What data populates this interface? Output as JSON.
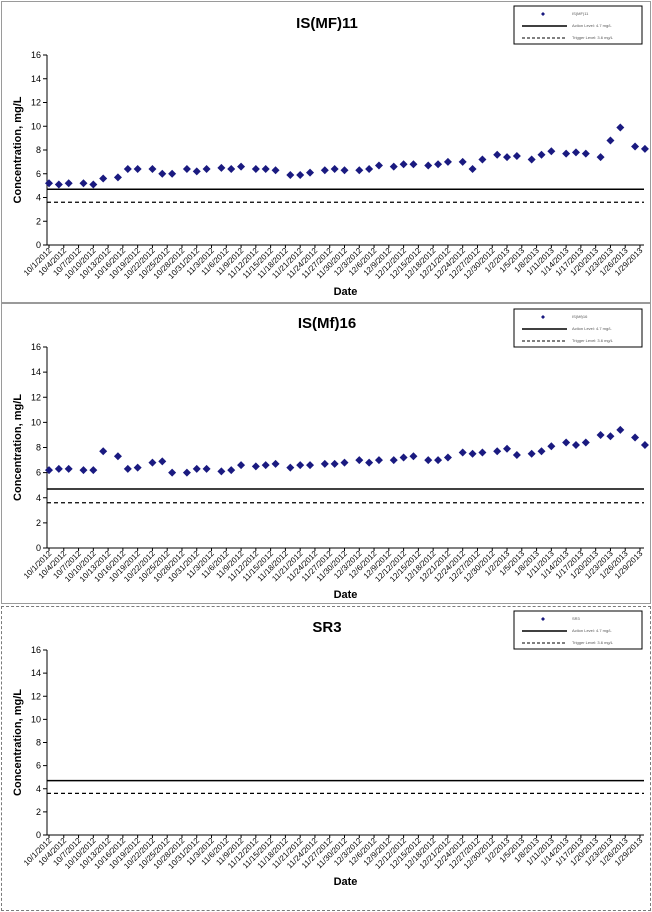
{
  "chart_data": [
    {
      "type": "scatter",
      "title": "IS(MF)11",
      "xlabel": "Date",
      "ylabel": "Concentration, mg/L",
      "ylim": [
        0,
        16
      ],
      "yticks": [
        "0",
        "2",
        "4",
        "6",
        "8",
        "10",
        "12",
        "14",
        "16"
      ],
      "xticks": [
        "10/1/2012",
        "10/4/2012",
        "10/7/2012",
        "10/10/2012",
        "10/13/2012",
        "10/16/2012",
        "10/19/2012",
        "10/22/2012",
        "10/25/2012",
        "10/28/2012",
        "10/31/2012",
        "11/3/2012",
        "11/6/2012",
        "11/9/2012",
        "11/12/2012",
        "11/15/2012",
        "11/18/2012",
        "11/21/2012",
        "11/24/2012",
        "11/27/2012",
        "11/30/2012",
        "12/3/2012",
        "12/6/2012",
        "12/9/2012",
        "12/12/2012",
        "12/15/2012",
        "12/18/2012",
        "12/21/2012",
        "12/24/2012",
        "12/27/2012",
        "12/30/2012",
        "1/2/2013",
        "1/5/2013",
        "1/8/2013",
        "1/11/2013",
        "1/14/2013",
        "1/17/2013",
        "1/20/2013",
        "1/23/2013",
        "1/26/2013",
        "1/29/2013"
      ],
      "grid": false,
      "legend_position": "top-right",
      "legend": [
        "IS(MF)11",
        "Action Level: 4.7 mg/L",
        "Trigger Level: 3.6 mg/L"
      ],
      "series": [
        {
          "name": "IS(MF)11",
          "color": "#1a1a80",
          "x": [
            "10/1/2012",
            "10/3/2012",
            "10/5/2012",
            "10/8/2012",
            "10/10/2012",
            "10/12/2012",
            "10/15/2012",
            "10/17/2012",
            "10/19/2012",
            "10/22/2012",
            "10/24/2012",
            "10/26/2012",
            "10/29/2012",
            "10/31/2012",
            "11/2/2012",
            "11/5/2012",
            "11/7/2012",
            "11/9/2012",
            "11/12/2012",
            "11/14/2012",
            "11/16/2012",
            "11/19/2012",
            "11/21/2012",
            "11/23/2012",
            "11/26/2012",
            "11/28/2012",
            "11/30/2012",
            "12/3/2012",
            "12/5/2012",
            "12/7/2012",
            "12/10/2012",
            "12/12/2012",
            "12/14/2012",
            "12/17/2012",
            "12/19/2012",
            "12/21/2012",
            "12/24/2012",
            "12/26/2012",
            "12/28/2012",
            "12/31/2012",
            "1/2/2013",
            "1/4/2013",
            "1/7/2013",
            "1/9/2013",
            "1/11/2013",
            "1/14/2013",
            "1/16/2013",
            "1/18/2013",
            "1/21/2013",
            "1/23/2013",
            "1/25/2013",
            "1/28/2013",
            "1/30/2013"
          ],
          "y": [
            5.2,
            5.1,
            5.2,
            5.2,
            5.1,
            5.6,
            5.7,
            6.4,
            6.4,
            6.4,
            6.0,
            6.0,
            6.4,
            6.2,
            6.4,
            6.5,
            6.4,
            6.6,
            6.4,
            6.4,
            6.3,
            5.9,
            5.9,
            6.1,
            6.3,
            6.4,
            6.3,
            6.3,
            6.4,
            6.7,
            6.6,
            6.8,
            6.8,
            6.7,
            6.8,
            7.0,
            7.0,
            6.4,
            7.2,
            7.6,
            7.4,
            7.5,
            7.2,
            7.6,
            7.9,
            7.7,
            7.8,
            7.7,
            7.4,
            8.8,
            9.9,
            8.3,
            8.1
          ]
        }
      ],
      "reference_lines": [
        {
          "name": "Action Level: 4.7 mg/L",
          "y": 4.7,
          "style": "solid"
        },
        {
          "name": "Trigger Level: 3.6 mg/L",
          "y": 3.6,
          "style": "dashed"
        }
      ]
    },
    {
      "type": "scatter",
      "title": "IS(Mf)16",
      "xlabel": "Date",
      "ylabel": "Concentration, mg/L",
      "ylim": [
        0,
        16
      ],
      "yticks": [
        "0",
        "2",
        "4",
        "6",
        "8",
        "10",
        "12",
        "14",
        "16"
      ],
      "xticks": [
        "10/1/2012",
        "10/4/2012",
        "10/7/2012",
        "10/10/2012",
        "10/13/2012",
        "10/16/2012",
        "10/19/2012",
        "10/22/2012",
        "10/25/2012",
        "10/28/2012",
        "10/31/2012",
        "11/3/2012",
        "11/6/2012",
        "11/9/2012",
        "11/12/2012",
        "11/15/2012",
        "11/18/2012",
        "11/21/2012",
        "11/24/2012",
        "11/27/2012",
        "11/30/2012",
        "12/3/2012",
        "12/6/2012",
        "12/9/2012",
        "12/12/2012",
        "12/15/2012",
        "12/18/2012",
        "12/21/2012",
        "12/24/2012",
        "12/27/2012",
        "12/30/2012",
        "1/2/2013",
        "1/5/2013",
        "1/8/2013",
        "1/11/2013",
        "1/14/2013",
        "1/17/2013",
        "1/20/2013",
        "1/23/2013",
        "1/26/2013",
        "1/29/2013"
      ],
      "grid": false,
      "legend_position": "top-right",
      "legend": [
        "IS(Mf)16",
        "Action Level: 4.7 mg/L",
        "Trigger Level: 3.6 mg/L"
      ],
      "series": [
        {
          "name": "IS(Mf)16",
          "color": "#1a1a80",
          "x": [
            "10/1/2012",
            "10/3/2012",
            "10/5/2012",
            "10/8/2012",
            "10/10/2012",
            "10/12/2012",
            "10/15/2012",
            "10/17/2012",
            "10/19/2012",
            "10/22/2012",
            "10/24/2012",
            "10/26/2012",
            "10/29/2012",
            "10/31/2012",
            "11/2/2012",
            "11/5/2012",
            "11/7/2012",
            "11/9/2012",
            "11/12/2012",
            "11/14/2012",
            "11/16/2012",
            "11/19/2012",
            "11/21/2012",
            "11/23/2012",
            "11/26/2012",
            "11/28/2012",
            "11/30/2012",
            "12/3/2012",
            "12/5/2012",
            "12/7/2012",
            "12/10/2012",
            "12/12/2012",
            "12/14/2012",
            "12/17/2012",
            "12/19/2012",
            "12/21/2012",
            "12/24/2012",
            "12/26/2012",
            "12/28/2012",
            "12/31/2012",
            "1/2/2013",
            "1/4/2013",
            "1/7/2013",
            "1/9/2013",
            "1/11/2013",
            "1/14/2013",
            "1/16/2013",
            "1/18/2013",
            "1/21/2013",
            "1/23/2013",
            "1/25/2013",
            "1/28/2013",
            "1/30/2013"
          ],
          "y": [
            6.2,
            6.3,
            6.3,
            6.2,
            6.2,
            7.7,
            7.3,
            6.3,
            6.4,
            6.8,
            6.9,
            6.0,
            6.0,
            6.3,
            6.3,
            6.1,
            6.2,
            6.6,
            6.5,
            6.6,
            6.7,
            6.4,
            6.6,
            6.6,
            6.7,
            6.7,
            6.8,
            7.0,
            6.8,
            7.0,
            7.0,
            7.2,
            7.3,
            7.0,
            7.0,
            7.2,
            7.6,
            7.5,
            7.6,
            7.7,
            7.9,
            7.4,
            7.5,
            7.7,
            8.1,
            8.4,
            8.2,
            8.4,
            9.0,
            8.9,
            9.4,
            8.8,
            8.2
          ]
        }
      ],
      "reference_lines": [
        {
          "name": "Action Level: 4.7 mg/L",
          "y": 4.7,
          "style": "solid"
        },
        {
          "name": "Trigger Level: 3.6 mg/L",
          "y": 3.6,
          "style": "dashed"
        }
      ]
    },
    {
      "type": "scatter",
      "title": "SR3",
      "xlabel": "Date",
      "ylabel": "Concentration, mg/L",
      "ylim": [
        0,
        16
      ],
      "yticks": [
        "0",
        "2",
        "4",
        "6",
        "8",
        "10",
        "12",
        "14",
        "16"
      ],
      "xticks": [
        "10/1/2012",
        "10/4/2012",
        "10/7/2012",
        "10/10/2012",
        "10/13/2012",
        "10/16/2012",
        "10/19/2012",
        "10/22/2012",
        "10/25/2012",
        "10/28/2012",
        "10/31/2012",
        "11/3/2012",
        "11/6/2012",
        "11/9/2012",
        "11/12/2012",
        "11/15/2012",
        "11/18/2012",
        "11/21/2012",
        "11/24/2012",
        "11/27/2012",
        "11/30/2012",
        "12/3/2012",
        "12/6/2012",
        "12/9/2012",
        "12/12/2012",
        "12/15/2012",
        "12/18/2012",
        "12/21/2012",
        "12/24/2012",
        "12/27/2012",
        "12/30/2012",
        "1/2/2013",
        "1/5/2013",
        "1/8/2013",
        "1/11/2013",
        "1/14/2013",
        "1/17/2013",
        "1/20/2013",
        "1/23/2013",
        "1/26/2013",
        "1/29/2013"
      ],
      "grid": false,
      "legend_position": "top-right",
      "legend": [
        "SR3",
        "Action Level: 4.7 mg/L",
        "Trigger Level: 3.6 mg/L"
      ],
      "series": [
        {
          "name": "SR3",
          "color": "#1a1a80",
          "x": [],
          "y": []
        }
      ],
      "reference_lines": [
        {
          "name": "Action Level: 4.7 mg/L",
          "y": 4.7,
          "style": "solid"
        },
        {
          "name": "Trigger Level: 3.6 mg/L",
          "y": 3.6,
          "style": "dashed"
        }
      ]
    }
  ]
}
